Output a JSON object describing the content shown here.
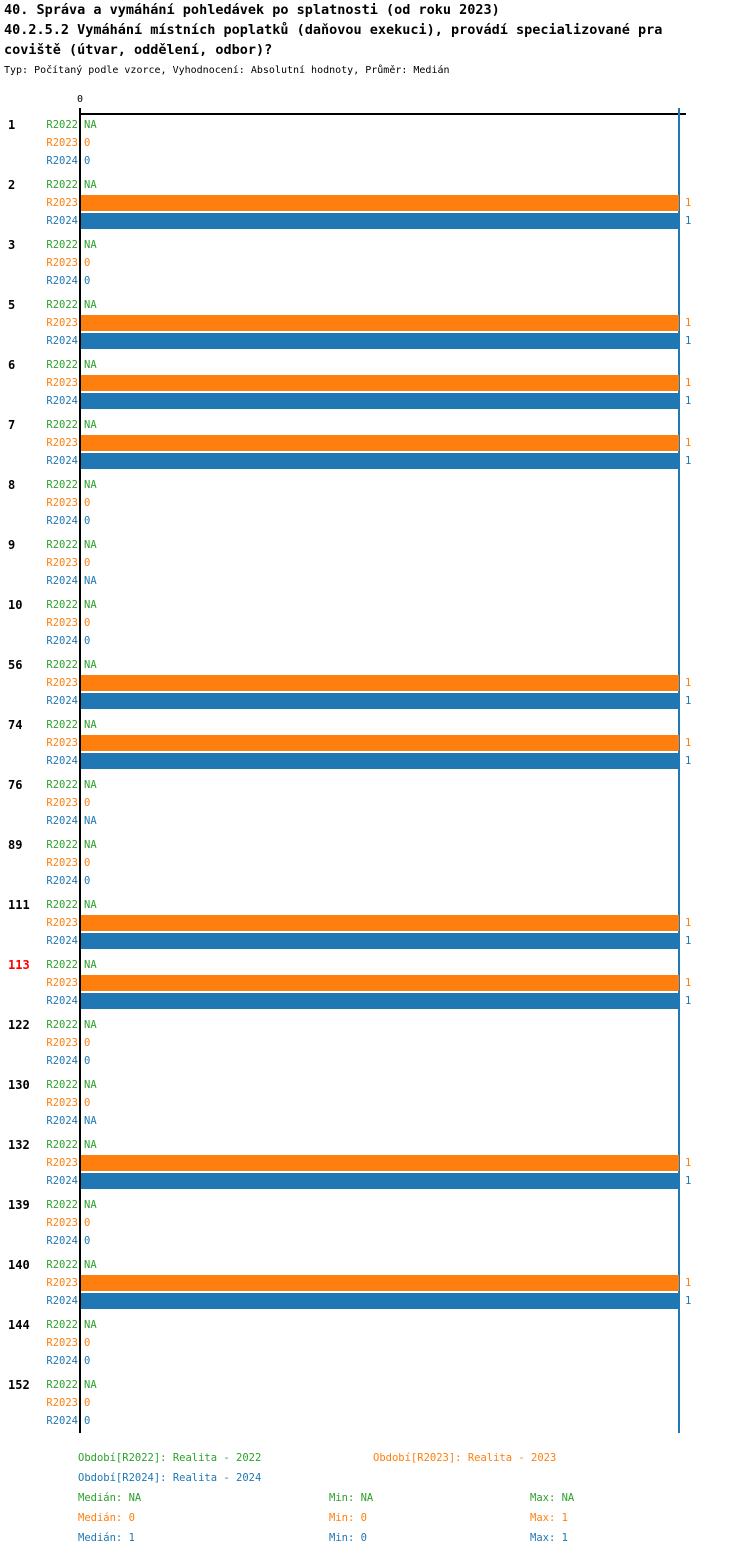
{
  "header": {
    "title_line1": "40. Správa a vymáhání pohledávek po splatnosti (od roku 2023)",
    "title_line2": "40.2.5.2 Vymáhání místních poplatků (daňovou exekuci), provádí specializované pra",
    "title_line3": "coviště (útvar, oddělení, odbor)?",
    "subtitle": "Typ: Počítaný podle vzorce, Vyhodnocení: Absolutní hodnoty, Průměr: Medián"
  },
  "axis": {
    "tick0_label": "0",
    "xlim": [
      0,
      1
    ]
  },
  "colors": {
    "r2022_green": "#2ca02c",
    "r2023_orange": "#ff7f0e",
    "r2024_blue": "#1f77b4",
    "highlight_red": "#ff0000",
    "axis_black": "#000000"
  },
  "chart_data": {
    "type": "bar",
    "orientation": "horizontal",
    "title": "40.2.5.2 Vymáhání místních poplatků (daňovou exekuci), provádí specializované pracoviště (útvar, oddělení, odbor)?",
    "xlim": [
      0,
      1
    ],
    "grid": "vertical line at x=1 (blue median line)",
    "series": [
      {
        "name": "R2022",
        "color": "#2ca02c",
        "period_label": "Období[R2022]: Realita - 2022",
        "median": "NA",
        "min": "NA",
        "max": "NA"
      },
      {
        "name": "R2023",
        "color": "#ff7f0e",
        "period_label": "Období[R2023]: Realita - 2023",
        "median": "0",
        "min": "0",
        "max": "1"
      },
      {
        "name": "R2024",
        "color": "#1f77b4",
        "period_label": "Období[R2024]: Realita - 2024",
        "median": "1",
        "min": "0",
        "max": "1"
      }
    ],
    "groups": [
      {
        "id": "1",
        "highlight": false,
        "values": {
          "R2022": "NA",
          "R2023": "0",
          "R2024": "0"
        }
      },
      {
        "id": "2",
        "highlight": false,
        "values": {
          "R2022": "NA",
          "R2023": "1",
          "R2024": "1"
        }
      },
      {
        "id": "3",
        "highlight": false,
        "values": {
          "R2022": "NA",
          "R2023": "0",
          "R2024": "0"
        }
      },
      {
        "id": "5",
        "highlight": false,
        "values": {
          "R2022": "NA",
          "R2023": "1",
          "R2024": "1"
        }
      },
      {
        "id": "6",
        "highlight": false,
        "values": {
          "R2022": "NA",
          "R2023": "1",
          "R2024": "1"
        }
      },
      {
        "id": "7",
        "highlight": false,
        "values": {
          "R2022": "NA",
          "R2023": "1",
          "R2024": "1"
        }
      },
      {
        "id": "8",
        "highlight": false,
        "values": {
          "R2022": "NA",
          "R2023": "0",
          "R2024": "0"
        }
      },
      {
        "id": "9",
        "highlight": false,
        "values": {
          "R2022": "NA",
          "R2023": "0",
          "R2024": "NA"
        }
      },
      {
        "id": "10",
        "highlight": false,
        "values": {
          "R2022": "NA",
          "R2023": "0",
          "R2024": "0"
        }
      },
      {
        "id": "56",
        "highlight": false,
        "values": {
          "R2022": "NA",
          "R2023": "1",
          "R2024": "1"
        }
      },
      {
        "id": "74",
        "highlight": false,
        "values": {
          "R2022": "NA",
          "R2023": "1",
          "R2024": "1"
        }
      },
      {
        "id": "76",
        "highlight": false,
        "values": {
          "R2022": "NA",
          "R2023": "0",
          "R2024": "NA"
        }
      },
      {
        "id": "89",
        "highlight": false,
        "values": {
          "R2022": "NA",
          "R2023": "0",
          "R2024": "0"
        }
      },
      {
        "id": "111",
        "highlight": false,
        "values": {
          "R2022": "NA",
          "R2023": "1",
          "R2024": "1"
        }
      },
      {
        "id": "113",
        "highlight": true,
        "values": {
          "R2022": "NA",
          "R2023": "1",
          "R2024": "1"
        }
      },
      {
        "id": "122",
        "highlight": false,
        "values": {
          "R2022": "NA",
          "R2023": "0",
          "R2024": "0"
        }
      },
      {
        "id": "130",
        "highlight": false,
        "values": {
          "R2022": "NA",
          "R2023": "0",
          "R2024": "NA"
        }
      },
      {
        "id": "132",
        "highlight": false,
        "values": {
          "R2022": "NA",
          "R2023": "1",
          "R2024": "1"
        }
      },
      {
        "id": "139",
        "highlight": false,
        "values": {
          "R2022": "NA",
          "R2023": "0",
          "R2024": "0"
        }
      },
      {
        "id": "140",
        "highlight": false,
        "values": {
          "R2022": "NA",
          "R2023": "1",
          "R2024": "1"
        }
      },
      {
        "id": "144",
        "highlight": false,
        "values": {
          "R2022": "NA",
          "R2023": "0",
          "R2024": "0"
        }
      },
      {
        "id": "152",
        "highlight": false,
        "values": {
          "R2022": "NA",
          "R2023": "0",
          "R2024": "0"
        }
      }
    ]
  },
  "legend": {
    "periods": [
      {
        "series": "R2022",
        "label": "Období[R2022]: Realita - 2022"
      },
      {
        "series": "R2023",
        "label": "Období[R2023]: Realita - 2023"
      },
      {
        "series": "R2024",
        "label": "Období[R2024]: Realita - 2024"
      }
    ],
    "stats": [
      {
        "series": "R2022",
        "median": "Medián: NA",
        "min": "Min: NA",
        "max": "Max: NA"
      },
      {
        "series": "R2023",
        "median": "Medián: 0",
        "min": "Min: 0",
        "max": "Max: 1"
      },
      {
        "series": "R2024",
        "median": "Medián: 1",
        "min": "Min: 0",
        "max": "Max: 1"
      }
    ]
  }
}
